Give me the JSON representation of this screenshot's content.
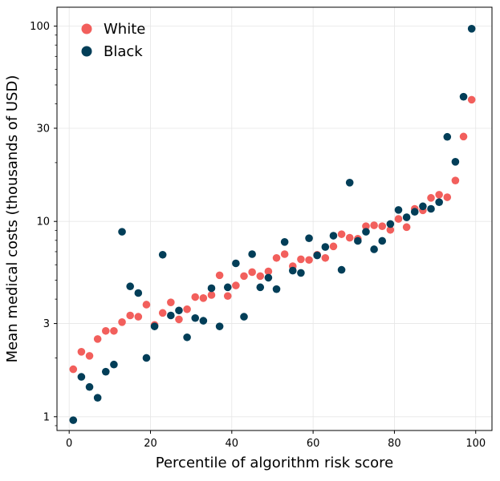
{
  "chart_data": {
    "type": "scatter",
    "title": "",
    "xlabel": "Percentile of algorithm risk score",
    "ylabel": "Mean medical costs (thousands of USD)",
    "xlim": [
      -3,
      104
    ],
    "ylim": [
      0.85,
      125
    ],
    "yscale": "log",
    "xticks": [
      0,
      20,
      40,
      60,
      80,
      100
    ],
    "yticks": [
      1,
      3,
      10,
      30,
      100
    ],
    "grid": true,
    "legend_position": "top-left",
    "series": [
      {
        "name": "White",
        "color": "#f25f5c",
        "points": [
          [
            1,
            1.75
          ],
          [
            3,
            2.15
          ],
          [
            5,
            2.05
          ],
          [
            7,
            2.5
          ],
          [
            9,
            2.75
          ],
          [
            11,
            2.75
          ],
          [
            13,
            3.05
          ],
          [
            15,
            3.3
          ],
          [
            17,
            3.25
          ],
          [
            19,
            3.75
          ],
          [
            21,
            2.95
          ],
          [
            23,
            3.4
          ],
          [
            25,
            3.85
          ],
          [
            27,
            3.15
          ],
          [
            29,
            3.55
          ],
          [
            31,
            4.1
          ],
          [
            33,
            4.05
          ],
          [
            35,
            4.2
          ],
          [
            37,
            5.3
          ],
          [
            39,
            4.15
          ],
          [
            41,
            4.7
          ],
          [
            43,
            5.25
          ],
          [
            45,
            5.5
          ],
          [
            47,
            5.25
          ],
          [
            49,
            5.55
          ],
          [
            51,
            6.5
          ],
          [
            53,
            6.8
          ],
          [
            55,
            5.9
          ],
          [
            57,
            6.4
          ],
          [
            59,
            6.35
          ],
          [
            61,
            6.75
          ],
          [
            63,
            6.5
          ],
          [
            65,
            7.45
          ],
          [
            67,
            8.6
          ],
          [
            69,
            8.25
          ],
          [
            71,
            8.15
          ],
          [
            73,
            9.45
          ],
          [
            75,
            9.55
          ],
          [
            77,
            9.45
          ],
          [
            79,
            9.05
          ],
          [
            81,
            10.3
          ],
          [
            83,
            9.35
          ],
          [
            85,
            11.6
          ],
          [
            87,
            11.4
          ],
          [
            89,
            13.2
          ],
          [
            91,
            13.7
          ],
          [
            93,
            13.3
          ],
          [
            95,
            16.2
          ],
          [
            97,
            27.2
          ],
          [
            99,
            42.0
          ]
        ]
      },
      {
        "name": "Black",
        "color": "#023e58",
        "points": [
          [
            1,
            0.96
          ],
          [
            3,
            1.6
          ],
          [
            5,
            1.42
          ],
          [
            7,
            1.25
          ],
          [
            9,
            1.7
          ],
          [
            11,
            1.85
          ],
          [
            13,
            8.85
          ],
          [
            15,
            4.65
          ],
          [
            17,
            4.3
          ],
          [
            19,
            2.0
          ],
          [
            21,
            2.9
          ],
          [
            23,
            6.75
          ],
          [
            25,
            3.3
          ],
          [
            27,
            3.5
          ],
          [
            29,
            2.55
          ],
          [
            31,
            3.2
          ],
          [
            33,
            3.1
          ],
          [
            35,
            4.55
          ],
          [
            37,
            2.9
          ],
          [
            39,
            4.6
          ],
          [
            41,
            6.1
          ],
          [
            43,
            3.25
          ],
          [
            45,
            6.8
          ],
          [
            47,
            4.6
          ],
          [
            49,
            5.15
          ],
          [
            51,
            4.5
          ],
          [
            53,
            7.85
          ],
          [
            55,
            5.6
          ],
          [
            57,
            5.45
          ],
          [
            59,
            8.2
          ],
          [
            61,
            6.7
          ],
          [
            63,
            7.4
          ],
          [
            65,
            8.45
          ],
          [
            67,
            5.65
          ],
          [
            69,
            15.8
          ],
          [
            71,
            7.95
          ],
          [
            73,
            8.85
          ],
          [
            75,
            7.2
          ],
          [
            77,
            7.95
          ],
          [
            79,
            9.7
          ],
          [
            81,
            11.45
          ],
          [
            83,
            10.5
          ],
          [
            85,
            11.2
          ],
          [
            87,
            11.95
          ],
          [
            89,
            11.6
          ],
          [
            91,
            12.55
          ],
          [
            93,
            27.1
          ],
          [
            95,
            20.2
          ],
          [
            97,
            43.5
          ],
          [
            99,
            97.0
          ]
        ]
      }
    ]
  }
}
